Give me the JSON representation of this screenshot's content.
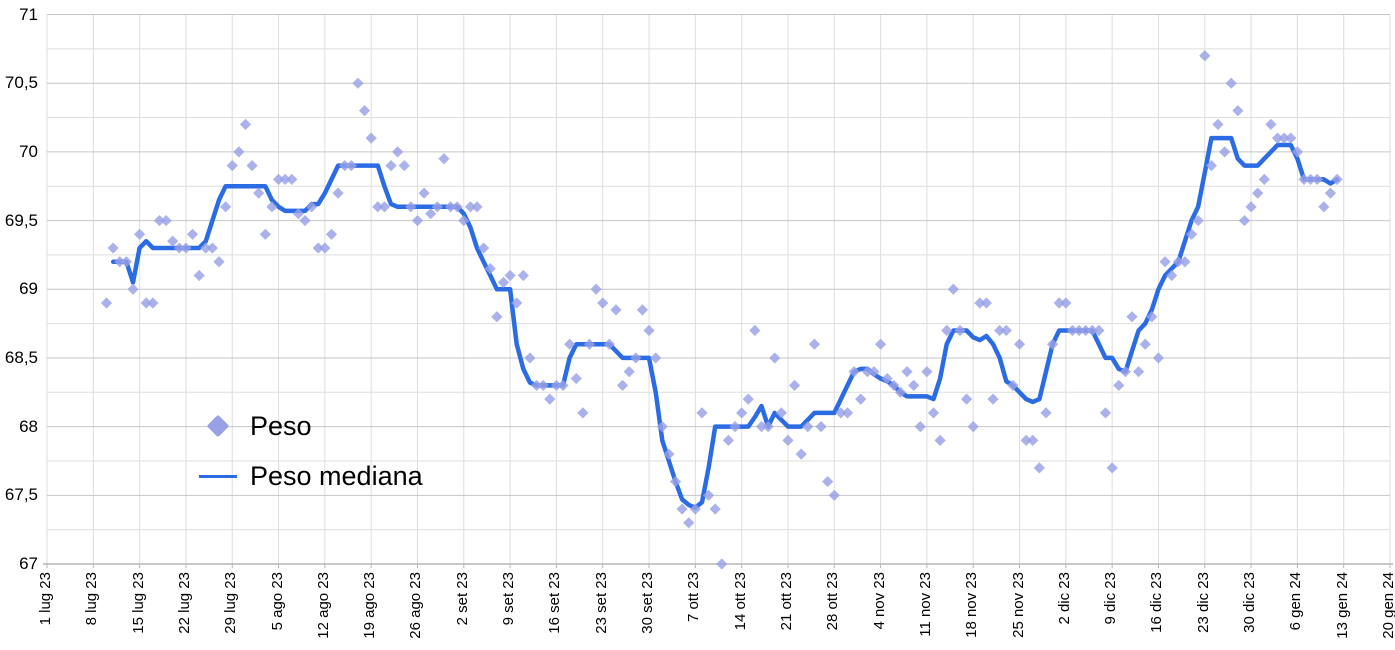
{
  "legend": {
    "items": [
      {
        "label": "Peso",
        "swatch": "diamond-icon"
      },
      {
        "label": "Peso mediana",
        "swatch": "line-icon"
      }
    ]
  },
  "colors": {
    "scatter": "#99a1e6",
    "line": "#2b6be4",
    "grid_major": "#c6c6c6",
    "grid_minor": "#dedede",
    "axis": "#b5b5b5",
    "text": "#000000",
    "background": "#ffffff"
  },
  "chart_data": {
    "type": "scatter",
    "title": "",
    "xlabel": "",
    "ylabel": "",
    "grid": true,
    "legend_position": "inside-left",
    "y_axis": {
      "min": 67,
      "max": 71,
      "major_step": 0.5,
      "minor_step": 0.25,
      "tick_labels": [
        "71",
        "70,5",
        "70",
        "69,5",
        "69",
        "68,5",
        "68",
        "67,5",
        "67"
      ]
    },
    "x_axis": {
      "tick_labels": [
        "1 lug 23",
        "8 lug 23",
        "15 lug 23",
        "22 lug 23",
        "29 lug 23",
        "5 ago 23",
        "12 ago 23",
        "19 ago 23",
        "26 ago 23",
        "2 set 23",
        "9 set 23",
        "16 set 23",
        "23 set 23",
        "30 set 23",
        "7 ott 23",
        "14 ott 23",
        "21 ott 23",
        "28 ott 23",
        "4 nov 23",
        "11 nov 23",
        "18 nov 23",
        "25 nov 23",
        "2 dic 23",
        "9 dic 23",
        "16 dic 23",
        "23 dic 23",
        "30 dic 23",
        "6 gen 24",
        "13 gen 24",
        "20 gen 24"
      ],
      "days_per_tick": 7,
      "total_days_span": 203
    },
    "series": [
      {
        "name": "Peso",
        "type": "scatter",
        "marker": "diamond",
        "cadence": "daily",
        "start_label": "10 lug 23",
        "end_label": "12 gen 24",
        "start_day_offset": 9,
        "values": [
          68.9,
          69.3,
          69.2,
          69.2,
          69.0,
          69.4,
          68.9,
          68.9,
          69.5,
          69.5,
          69.35,
          69.3,
          69.3,
          69.4,
          69.1,
          69.3,
          69.3,
          69.2,
          69.6,
          69.9,
          70.0,
          70.2,
          69.9,
          69.7,
          69.4,
          69.6,
          69.8,
          69.8,
          69.8,
          69.55,
          69.5,
          69.6,
          69.3,
          69.3,
          69.4,
          69.7,
          69.9,
          69.9,
          70.5,
          70.3,
          70.1,
          69.6,
          69.6,
          69.9,
          70.0,
          69.9,
          69.6,
          69.5,
          69.7,
          69.55,
          69.6,
          69.95,
          69.6,
          69.6,
          69.5,
          69.6,
          69.6,
          69.3,
          69.15,
          68.8,
          69.05,
          69.1,
          68.9,
          69.1,
          68.5,
          68.3,
          68.3,
          68.2,
          68.3,
          68.3,
          68.6,
          68.35,
          68.1,
          68.6,
          69.0,
          68.9,
          68.6,
          68.85,
          68.3,
          68.4,
          68.5,
          68.85,
          68.7,
          68.5,
          68.0,
          67.8,
          67.6,
          67.4,
          67.3,
          67.4,
          68.1,
          67.5,
          67.4,
          67.0,
          67.9,
          68.0,
          68.1,
          68.2,
          68.7,
          68.0,
          68.0,
          68.5,
          68.1,
          67.9,
          68.3,
          67.8,
          68.0,
          68.6,
          68.0,
          67.6,
          67.5,
          68.1,
          68.1,
          68.4,
          68.2,
          68.4,
          68.4,
          68.6,
          68.35,
          68.3,
          68.25,
          68.4,
          68.3,
          68.0,
          68.4,
          68.1,
          67.9,
          68.7,
          69.0,
          68.7,
          68.2,
          68.0,
          68.9,
          68.9,
          68.2,
          68.7,
          68.7,
          68.3,
          68.6,
          67.9,
          67.9,
          67.7,
          68.1,
          68.6,
          68.9,
          68.9,
          68.7,
          68.7,
          68.7,
          68.7,
          68.7,
          68.1,
          67.7,
          68.3,
          68.4,
          68.8,
          68.4,
          68.6,
          68.8,
          68.5,
          69.2,
          69.1,
          69.2,
          69.2,
          69.4,
          69.5,
          70.7,
          69.9,
          70.2,
          70.0,
          70.5,
          70.3,
          69.5,
          69.6,
          69.7,
          69.8,
          70.2,
          70.1,
          70.1,
          70.1,
          70.0,
          69.8,
          69.8,
          69.8,
          69.6,
          69.7,
          69.8
        ]
      },
      {
        "name": "Peso mediana",
        "type": "line",
        "cadence": "daily",
        "start_label": "10 lug 23",
        "end_label": "12 gen 24",
        "start_day_offset": 9,
        "values": [
          null,
          69.2,
          69.2,
          69.2,
          69.05,
          69.3,
          69.35,
          69.3,
          69.3,
          69.3,
          69.3,
          69.3,
          69.3,
          69.3,
          69.3,
          69.35,
          69.5,
          69.65,
          69.75,
          69.75,
          69.75,
          69.75,
          69.75,
          69.75,
          69.75,
          69.65,
          69.6,
          69.57,
          69.57,
          69.57,
          69.57,
          69.62,
          69.62,
          69.7,
          69.8,
          69.9,
          69.9,
          69.9,
          69.9,
          69.9,
          69.9,
          69.9,
          69.75,
          69.62,
          69.6,
          69.6,
          69.6,
          69.6,
          69.6,
          69.6,
          69.6,
          69.6,
          69.6,
          69.6,
          69.55,
          69.45,
          69.3,
          69.2,
          69.1,
          69.0,
          69.0,
          69.0,
          68.6,
          68.42,
          68.32,
          68.3,
          68.3,
          68.3,
          68.3,
          68.3,
          68.5,
          68.6,
          68.6,
          68.6,
          68.6,
          68.6,
          68.6,
          68.55,
          68.5,
          68.5,
          68.5,
          68.5,
          68.5,
          68.25,
          67.9,
          67.75,
          67.6,
          67.47,
          67.43,
          67.41,
          67.45,
          67.7,
          68.0,
          68.0,
          68.0,
          68.0,
          68.0,
          68.0,
          68.07,
          68.15,
          68.0,
          68.1,
          68.05,
          68.0,
          68.0,
          68.0,
          68.05,
          68.1,
          68.1,
          68.1,
          68.1,
          68.2,
          68.3,
          68.4,
          68.42,
          68.42,
          68.38,
          68.35,
          68.33,
          68.3,
          68.25,
          68.22,
          68.22,
          68.22,
          68.22,
          68.2,
          68.35,
          68.6,
          68.7,
          68.7,
          68.7,
          68.65,
          68.63,
          68.66,
          68.6,
          68.5,
          68.33,
          68.3,
          68.25,
          68.2,
          68.18,
          68.2,
          68.4,
          68.6,
          68.7,
          68.7,
          68.7,
          68.7,
          68.7,
          68.7,
          68.6,
          68.5,
          68.5,
          68.42,
          68.4,
          68.55,
          68.7,
          68.75,
          68.85,
          69.0,
          69.1,
          69.15,
          69.2,
          69.35,
          69.5,
          69.6,
          69.85,
          70.1,
          70.1,
          70.1,
          70.1,
          69.95,
          69.9,
          69.9,
          69.9,
          69.95,
          70.0,
          70.05,
          70.05,
          70.05,
          69.95,
          69.8,
          69.8,
          69.8,
          69.8,
          69.77,
          69.8
        ]
      }
    ]
  }
}
